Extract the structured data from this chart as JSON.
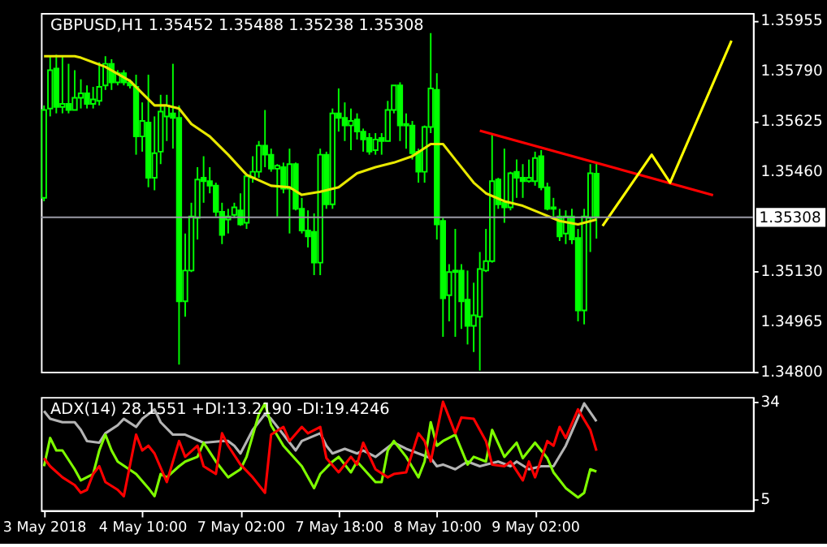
{
  "chart_data": [
    {
      "type": "candlestick",
      "title": "GBPUSD,H1 1.35452 1.35488 1.35238 1.35308",
      "color": "#00ff00",
      "ohlc": [
        [
          1.35372,
          1.35676,
          1.35361,
          1.35661
        ],
        [
          1.35666,
          1.35838,
          1.3564,
          1.35792
        ],
        [
          1.35797,
          1.35843,
          1.3565,
          1.35671
        ],
        [
          1.35671,
          1.35838,
          1.3565,
          1.35681
        ],
        [
          1.35681,
          1.35813,
          1.3565,
          1.35661
        ],
        [
          1.35661,
          1.35792,
          1.35661,
          1.35701
        ],
        [
          1.35701,
          1.35762,
          1.35666,
          1.35716
        ],
        [
          1.35716,
          1.35742,
          1.35666,
          1.35681
        ],
        [
          1.35681,
          1.35737,
          1.35666,
          1.35696
        ],
        [
          1.35691,
          1.35818,
          1.35676,
          1.35737
        ],
        [
          1.35742,
          1.35838,
          1.35727,
          1.35813
        ],
        [
          1.35813,
          1.35828,
          1.35727,
          1.35752
        ],
        [
          1.35752,
          1.35792,
          1.35742,
          1.35782
        ],
        [
          1.35782,
          1.35792,
          1.35742,
          1.35752
        ],
        [
          1.35752,
          1.35762,
          1.35732,
          1.35742
        ],
        [
          1.35737,
          1.35777,
          1.35514,
          1.35574
        ],
        [
          1.35574,
          1.35686,
          1.35524,
          1.35625
        ],
        [
          1.3562,
          1.35777,
          1.35407,
          1.35438
        ],
        [
          1.35438,
          1.3564,
          1.35397,
          1.35519
        ],
        [
          1.35524,
          1.35711,
          1.35483,
          1.35656
        ],
        [
          1.3564,
          1.35711,
          1.35559,
          1.35676
        ],
        [
          1.3565,
          1.35813,
          1.35534,
          1.35635
        ],
        [
          1.35635,
          1.35676,
          1.34824,
          1.35032
        ],
        [
          1.35032,
          1.35255,
          1.34981,
          1.35133
        ],
        [
          1.35133,
          1.35356,
          1.35128,
          1.35311
        ],
        [
          1.35306,
          1.35473,
          1.35235,
          1.35432
        ],
        [
          1.35438,
          1.35509,
          1.35356,
          1.35427
        ],
        [
          1.35427,
          1.35473,
          1.35387,
          1.35412
        ],
        [
          1.35412,
          1.35422,
          1.35311,
          1.35326
        ],
        [
          1.35326,
          1.35356,
          1.3522,
          1.3525
        ],
        [
          1.35301,
          1.35336,
          1.35255,
          1.35311
        ],
        [
          1.35316,
          1.35356,
          1.35306,
          1.35341
        ],
        [
          1.35331,
          1.35387,
          1.3528,
          1.35285
        ],
        [
          1.3529,
          1.35448,
          1.3527,
          1.35443
        ],
        [
          1.35438,
          1.35509,
          1.35422,
          1.35458
        ],
        [
          1.35458,
          1.35559,
          1.35438,
          1.35544
        ],
        [
          1.35544,
          1.35661,
          1.35473,
          1.35514
        ],
        [
          1.35514,
          1.35534,
          1.35458,
          1.35468
        ],
        [
          1.35468,
          1.35483,
          1.35311,
          1.35478
        ],
        [
          1.35473,
          1.35488,
          1.35387,
          1.35402
        ],
        [
          1.35402,
          1.35534,
          1.35255,
          1.35483
        ],
        [
          1.35483,
          1.35488,
          1.35331,
          1.35336
        ],
        [
          1.35336,
          1.35372,
          1.35255,
          1.35265
        ],
        [
          1.35265,
          1.35331,
          1.35209,
          1.35245
        ],
        [
          1.3526,
          1.35321,
          1.35118,
          1.35159
        ],
        [
          1.35159,
          1.35534,
          1.35118,
          1.35514
        ],
        [
          1.35514,
          1.35524,
          1.35336,
          1.35351
        ],
        [
          1.35351,
          1.35666,
          1.35336,
          1.3565
        ],
        [
          1.3565,
          1.35732,
          1.3559,
          1.35635
        ],
        [
          1.35635,
          1.35686,
          1.35559,
          1.3561
        ],
        [
          1.3561,
          1.35666,
          1.35529,
          1.35625
        ],
        [
          1.3563,
          1.3565,
          1.35564,
          1.3559
        ],
        [
          1.3559,
          1.356,
          1.35524,
          1.35564
        ],
        [
          1.35569,
          1.35585,
          1.35514,
          1.35524
        ],
        [
          1.35529,
          1.35585,
          1.35514,
          1.35564
        ],
        [
          1.35569,
          1.35585,
          1.35514,
          1.35559
        ],
        [
          1.35559,
          1.35691,
          1.35559,
          1.35661
        ],
        [
          1.35661,
          1.35742,
          1.3565,
          1.35742
        ],
        [
          1.35742,
          1.35752,
          1.35559,
          1.3561
        ],
        [
          1.3561,
          1.3565,
          1.35534,
          1.35615
        ],
        [
          1.3561,
          1.35625,
          1.35498,
          1.35519
        ],
        [
          1.35524,
          1.35534,
          1.35422,
          1.35458
        ],
        [
          1.35458,
          1.3561,
          1.35422,
          1.35605
        ],
        [
          1.35605,
          1.35914,
          1.35585,
          1.35732
        ],
        [
          1.35727,
          1.35782,
          1.35235,
          1.35285
        ],
        [
          1.35296,
          1.35306,
          1.34915,
          1.35042
        ],
        [
          1.35052,
          1.35154,
          1.34966,
          1.35128
        ],
        [
          1.35128,
          1.3527,
          1.34915,
          1.35133
        ],
        [
          1.35133,
          1.35154,
          1.34941,
          1.35032
        ],
        [
          1.35037,
          1.35133,
          1.3489,
          1.34951
        ],
        [
          1.34951,
          1.35093,
          1.34865,
          1.34986
        ],
        [
          1.34981,
          1.35194,
          1.34804,
          1.35138
        ],
        [
          1.35133,
          1.3527,
          1.35128,
          1.35164
        ],
        [
          1.35164,
          1.35585,
          1.35159,
          1.35427
        ],
        [
          1.35432,
          1.35438,
          1.35336,
          1.35351
        ],
        [
          1.35356,
          1.35534,
          1.3529,
          1.35341
        ],
        [
          1.35341,
          1.35458,
          1.35331,
          1.35453
        ],
        [
          1.35458,
          1.35498,
          1.35372,
          1.35438
        ],
        [
          1.35438,
          1.35483,
          1.35372,
          1.35427
        ],
        [
          1.35427,
          1.35498,
          1.35422,
          1.35438
        ],
        [
          1.35427,
          1.35524,
          1.35412,
          1.35503
        ],
        [
          1.35509,
          1.35529,
          1.35397,
          1.35407
        ],
        [
          1.35407,
          1.35422,
          1.35331,
          1.35336
        ],
        [
          1.35336,
          1.35372,
          1.35311,
          1.35341
        ],
        [
          1.35311,
          1.35336,
          1.3523,
          1.35245
        ],
        [
          1.35255,
          1.35331,
          1.3522,
          1.35311
        ],
        [
          1.35311,
          1.35336,
          1.3522,
          1.35235
        ],
        [
          1.3524,
          1.3527,
          1.34966,
          1.35002
        ],
        [
          1.35002,
          1.35336,
          1.34956,
          1.35311
        ],
        [
          1.35306,
          1.35483,
          1.35194,
          1.35453
        ],
        [
          1.35452,
          1.35488,
          1.35238,
          1.35308
        ],
        null,
        null,
        null,
        null,
        null,
        null,
        null,
        null,
        null,
        null,
        null,
        null,
        null,
        null,
        null,
        null,
        null,
        null,
        null,
        null,
        null,
        null,
        null,
        null,
        null
      ],
      "series": [
        {
          "type": "line",
          "color": "#e8e800",
          "values": [
            1.35838,
            null,
            null,
            null,
            null,
            1.35838,
            1.35833,
            null,
            1.35818,
            null,
            1.35803,
            null,
            null,
            null,
            1.35757,
            null,
            1.35716,
            null,
            1.35676,
            null,
            1.35676,
            null,
            1.35666,
            null,
            1.35615,
            null,
            null,
            1.35574,
            null,
            null,
            1.35514,
            null,
            null,
            1.35448,
            null,
            null,
            null,
            1.35412,
            null,
            null,
            1.35407,
            null,
            1.35382,
            null,
            null,
            1.35392,
            null,
            null,
            1.35407,
            null,
            null,
            1.35453,
            null,
            null,
            1.35473,
            null,
            null,
            1.35488,
            null,
            null,
            1.35509,
            null,
            null,
            1.35549,
            null,
            1.35549,
            null,
            1.35498,
            null,
            null,
            1.35422,
            null,
            1.35387,
            null,
            null,
            1.35361,
            null,
            null,
            1.35346,
            null,
            null,
            1.35321,
            null,
            null,
            1.35296,
            null,
            null,
            1.35285,
            null,
            null,
            1.35301,
            null,
            null,
            null,
            null,
            null,
            null,
            null,
            null,
            null,
            null,
            null,
            null,
            null,
            null,
            null,
            null,
            null,
            null,
            null,
            null,
            null,
            null,
            null,
            null,
            null
          ]
        },
        {
          "type": "line",
          "color": "#ff0000",
          "values": [
            null,
            null,
            null,
            null,
            null,
            null,
            null,
            null,
            null,
            null,
            null,
            null,
            null,
            null,
            null,
            null,
            null,
            null,
            null,
            null,
            null,
            null,
            null,
            null,
            null,
            null,
            null,
            null,
            null,
            null,
            null,
            null,
            null,
            null,
            null,
            null,
            null,
            null,
            null,
            null,
            null,
            null,
            null,
            null,
            null,
            null,
            null,
            null,
            null,
            null,
            null,
            null,
            null,
            null,
            null,
            null,
            null,
            null,
            null,
            null,
            null,
            null,
            null,
            null,
            null,
            null,
            null,
            null,
            null,
            null,
            null,
            1.35593,
            null,
            null,
            null,
            null,
            null,
            null,
            null,
            null,
            null,
            null,
            null,
            null,
            null,
            null,
            null,
            null,
            null,
            null,
            null,
            null,
            null,
            null,
            null,
            null,
            null,
            null,
            null,
            null,
            null,
            null,
            null,
            null,
            null,
            null,
            null,
            null,
            null,
            1.35381,
            null,
            null,
            null,
            null,
            null,
            null
          ]
        },
        {
          "type": "line",
          "color": "#ffff00",
          "values": [
            null,
            null,
            null,
            null,
            null,
            null,
            null,
            null,
            null,
            null,
            null,
            null,
            null,
            null,
            null,
            null,
            null,
            null,
            null,
            null,
            null,
            null,
            null,
            null,
            null,
            null,
            null,
            null,
            null,
            null,
            null,
            null,
            null,
            null,
            null,
            null,
            null,
            null,
            null,
            null,
            null,
            null,
            null,
            null,
            null,
            null,
            null,
            null,
            null,
            null,
            null,
            null,
            null,
            null,
            null,
            null,
            null,
            null,
            null,
            null,
            null,
            null,
            null,
            null,
            null,
            null,
            null,
            null,
            null,
            null,
            null,
            null,
            null,
            null,
            null,
            null,
            null,
            null,
            null,
            null,
            null,
            null,
            null,
            null,
            null,
            null,
            null,
            null,
            null,
            null,
            null,
            1.3528,
            null,
            null,
            null,
            null,
            null,
            null,
            null,
            1.35514,
            null,
            null,
            1.35422,
            null,
            null,
            null,
            null,
            null,
            null,
            null,
            null,
            null,
            1.35889,
            null,
            null,
            null
          ]
        }
      ],
      "ylim": [
        1.348,
        1.3598
      ],
      "yticks": [
        {
          "value": 1.348,
          "label": "1.34800"
        },
        {
          "value": 1.34965,
          "label": "1.34965"
        },
        {
          "value": 1.3513,
          "label": "1.35130"
        },
        {
          "value": 1.3546,
          "label": "1.35460"
        },
        {
          "value": 1.35625,
          "label": "1.35625"
        },
        {
          "value": 1.3579,
          "label": "1.35790"
        },
        {
          "value": 1.35955,
          "label": "1.35955"
        }
      ],
      "ref_lines": [
        {
          "axis": "y",
          "value": 1.35308,
          "label": "1.35308",
          "color": "#9a9aa6"
        }
      ],
      "tick_labels": "y"
    },
    {
      "type": "line",
      "title": "ADX(14) 28.1551 +DI:13.2190 -DI:19.4246",
      "categories": [
        "3 May 2018",
        null,
        null,
        null,
        null,
        null,
        null,
        null,
        null,
        null,
        null,
        null,
        null,
        null,
        null,
        null,
        "4 May 10:00",
        null,
        null,
        null,
        null,
        null,
        null,
        null,
        null,
        null,
        null,
        null,
        null,
        null,
        null,
        null,
        "7 May 02:00",
        null,
        null,
        null,
        null,
        null,
        null,
        null,
        null,
        null,
        null,
        null,
        null,
        null,
        null,
        null,
        "7 May 18:00",
        null,
        null,
        null,
        null,
        null,
        null,
        null,
        null,
        null,
        null,
        null,
        null,
        null,
        null,
        null,
        "8 May 10:00",
        null,
        null,
        null,
        null,
        null,
        null,
        null,
        null,
        null,
        null,
        null,
        null,
        null,
        null,
        null,
        "9 May 02:00",
        null,
        null,
        null,
        null,
        null,
        null,
        null,
        null,
        null,
        null,
        null,
        null,
        null,
        null,
        null,
        null,
        null,
        null,
        null,
        null,
        null,
        null,
        null,
        null,
        null,
        null,
        null,
        null,
        null,
        null,
        null,
        null,
        null,
        null,
        null
      ],
      "series": [
        {
          "color": "#b4b4b4",
          "values": [
            31.2,
            28.9,
            null,
            27.9,
            null,
            27.9,
            25.6,
            22.3,
            null,
            21.8,
            24.6,
            null,
            27.0,
            28.9,
            null,
            26.5,
            28.9,
            null,
            31.7,
            27.9,
            null,
            24.2,
            null,
            24.2,
            null,
            null,
            21.8,
            null,
            null,
            22.3,
            22.3,
            20.9,
            18.6,
            null,
            25.6,
            null,
            30.3,
            28.9,
            null,
            24.2,
            null,
            19.5,
            22.3,
            null,
            null,
            24.6,
            20.9,
            18.6,
            null,
            20.0,
            null,
            18.6,
            19.5,
            null,
            17.6,
            null,
            null,
            21.8,
            null,
            20.0,
            null,
            18.6,
            null,
            17.2,
            14.8,
            15.3,
            null,
            13.9,
            null,
            16.2,
            null,
            14.8,
            15.3,
            null,
            16.2,
            null,
            14.8,
            16.2,
            null,
            13.9,
            null,
            14.8,
            null,
            14.8,
            null,
            20.9,
            null,
            29.3,
            33.5,
            null,
            28.1551,
            null,
            null,
            null,
            null,
            null,
            null,
            null,
            null,
            null,
            null,
            null,
            null,
            null,
            null,
            null,
            null,
            null,
            null,
            null,
            null,
            null,
            null,
            null,
            null,
            null
          ]
        },
        {
          "color": "#7fff00",
          "values": [
            14.8,
            23.2,
            19.5,
            19.5,
            null,
            13.9,
            10.6,
            null,
            12.5,
            19.5,
            24.2,
            19.5,
            16.2,
            null,
            null,
            12.5,
            null,
            8.3,
            5.9,
            12.5,
            11.5,
            null,
            14.8,
            16.2,
            null,
            17.6,
            21.8,
            null,
            16.2,
            null,
            11.5,
            null,
            13.9,
            17.6,
            null,
            30.3,
            33.5,
            27.0,
            null,
            20.9,
            null,
            null,
            14.8,
            null,
            8.3,
            12.5,
            null,
            16.2,
            17.6,
            null,
            13.0,
            16.2,
            null,
            null,
            10.1,
            10.1,
            19.5,
            22.3,
            null,
            17.6,
            null,
            11.5,
            16.2,
            27.9,
            20.9,
            22.3,
            null,
            24.2,
            null,
            15.3,
            17.6,
            null,
            16.2,
            25.6,
            null,
            17.6,
            null,
            21.8,
            17.2,
            null,
            21.8,
            null,
            17.2,
            13.0,
            null,
            8.3,
            null,
            5.5,
            6.9,
            13.9,
            13.219,
            null,
            null,
            null,
            null,
            null,
            null,
            null,
            null,
            null,
            null,
            null,
            null,
            null,
            null,
            null,
            null,
            null,
            null,
            null,
            null,
            null,
            null,
            null,
            null,
            null
          ]
        },
        {
          "color": "#ff0000",
          "values": [
            17.2,
            14.8,
            null,
            11.5,
            null,
            9.2,
            6.9,
            7.8,
            12.5,
            14.8,
            10.1,
            null,
            7.8,
            5.9,
            null,
            24.2,
            19.5,
            20.9,
            18.6,
            null,
            10.1,
            null,
            22.3,
            17.6,
            null,
            20.9,
            14.8,
            null,
            12.5,
            24.6,
            20.9,
            null,
            15.3,
            null,
            11.5,
            null,
            6.9,
            24.2,
            null,
            26.5,
            22.3,
            null,
            26.5,
            24.6,
            null,
            26.5,
            17.2,
            null,
            13.0,
            null,
            17.6,
            15.3,
            21.8,
            null,
            13.9,
            null,
            11.5,
            12.5,
            null,
            13.0,
            null,
            24.6,
            22.3,
            16.2,
            null,
            34.0,
            null,
            24.6,
            29.3,
            null,
            28.9,
            null,
            22.3,
            15.3,
            null,
            14.8,
            16.2,
            null,
            10.6,
            16.2,
            11.5,
            null,
            22.3,
            20.9,
            26.5,
            23.2,
            null,
            31.7,
            null,
            25.6,
            19.4246,
            null,
            null,
            null,
            null,
            null,
            null,
            null,
            null,
            null,
            null,
            null,
            null,
            null,
            null,
            null,
            null,
            null,
            null,
            null,
            null,
            null,
            null,
            null,
            null,
            null
          ]
        }
      ],
      "ylim": [
        1.7,
        35.4
      ],
      "yticks": [
        5,
        34
      ]
    }
  ]
}
